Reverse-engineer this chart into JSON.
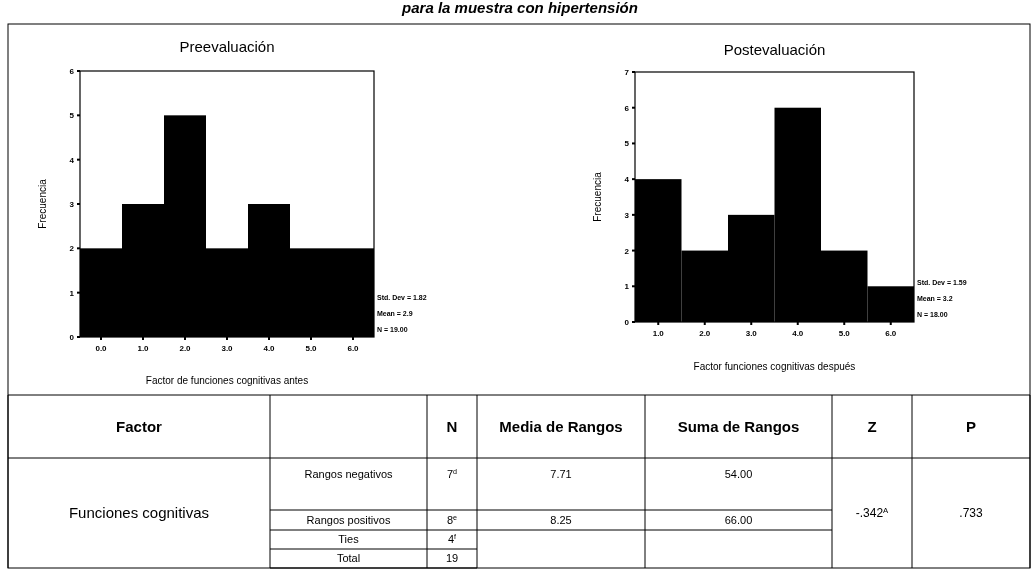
{
  "chart_data": [
    {
      "type": "histogram",
      "title": "Preevaluación",
      "xlabel": "Factor de funciones cognitivas antes",
      "ylabel": "Frecuencia",
      "bins": [
        -0.5,
        0.5,
        1.5,
        2.5,
        3.5,
        4.5,
        5.5,
        6.5
      ],
      "values": [
        2,
        3,
        5,
        2,
        3,
        2,
        2
      ],
      "color": "#000000",
      "xlim": [
        -0.5,
        6.5
      ],
      "ylim": [
        0,
        6
      ],
      "xticks": [
        {
          "value": 0,
          "label": "0.0"
        },
        {
          "value": 1,
          "label": "1.0"
        },
        {
          "value": 2,
          "label": "2.0"
        },
        {
          "value": 3,
          "label": "3.0"
        },
        {
          "value": 4,
          "label": "4.0"
        },
        {
          "value": 5,
          "label": "5.0"
        },
        {
          "value": 6,
          "label": "6.0"
        }
      ],
      "yticks": [
        0,
        1,
        2,
        3,
        4,
        5,
        6
      ],
      "annotations": [
        "Std. Dev = 1.82",
        "Mean = 2.9",
        "N = 19.00"
      ]
    },
    {
      "type": "histogram",
      "title": "Postevaluación",
      "xlabel": "Factor funciones cognitivas después",
      "ylabel": "Frecuencia",
      "bins": [
        0.5,
        1.5,
        2.5,
        3.5,
        4.5,
        5.5,
        6.5
      ],
      "values": [
        4,
        2,
        3,
        6,
        2,
        1
      ],
      "color": "#000000",
      "xlim": [
        0.5,
        6.5
      ],
      "ylim": [
        0,
        7
      ],
      "xticks": [
        {
          "value": 1,
          "label": "1.0"
        },
        {
          "value": 2,
          "label": "2.0"
        },
        {
          "value": 3,
          "label": "3.0"
        },
        {
          "value": 4,
          "label": "4.0"
        },
        {
          "value": 5,
          "label": "5.0"
        },
        {
          "value": 6,
          "label": "6.0"
        }
      ],
      "yticks": [
        0,
        1,
        2,
        3,
        4,
        5,
        6,
        7
      ],
      "annotations": [
        "Std. Dev = 1.59",
        "Mean = 3.2",
        "N = 18.00"
      ]
    },
    {
      "type": "other",
      "title": "para la muestra con hipertensión",
      "annotations": [
        "Factor",
        "N",
        "Media de Rangos",
        "Suma de Rangos",
        "Z",
        "P",
        "Funciones cognitivas",
        "Rangos negativos",
        "7$^{d}$",
        "7.71",
        "54.00",
        "Rangos positivos",
        "8$^{e}$",
        "8.25",
        "66.00",
        "-.342$^{A}$",
        ".733",
        "Ties",
        "4$^{f}$",
        "Total",
        "19"
      ]
    }
  ]
}
